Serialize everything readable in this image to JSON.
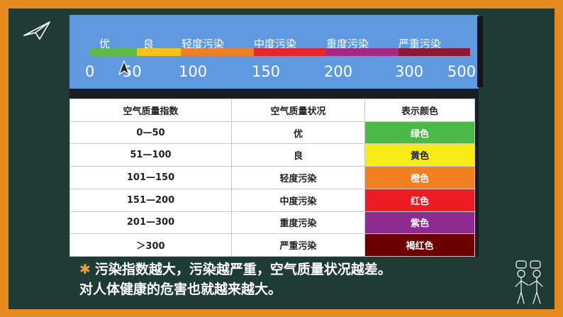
{
  "scale": {
    "levels": [
      "优",
      "良",
      "轻度污染",
      "中度污染",
      "重度污染",
      "严重污染"
    ],
    "colors": [
      "#5cb848",
      "#f6c21a",
      "#ec7f2c",
      "#e2272e",
      "#a22a82",
      "#8c1a33"
    ],
    "numbers": [
      "0",
      "50",
      "100",
      "150",
      "200",
      "300",
      "500"
    ]
  },
  "table": {
    "headers": [
      "空气质量指数",
      "空气质量状况",
      "表示颜色"
    ],
    "rows": [
      {
        "index": "0—50",
        "status": "优",
        "color_name": "绿色",
        "color": "#4cb848"
      },
      {
        "index": "51—100",
        "status": "良",
        "color_name": "黄色",
        "color": "#f7ec14"
      },
      {
        "index": "101—150",
        "status": "轻度污染",
        "color_name": "橙色",
        "color": "#f18020"
      },
      {
        "index": "151—200",
        "status": "中度污染",
        "color_name": "红色",
        "color": "#ec1c24"
      },
      {
        "index": "201—300",
        "status": "重度污染",
        "color_name": "紫色",
        "color": "#8e2b8f"
      },
      {
        "index": "＞300",
        "status": "严重污染",
        "color_name": "褐红色",
        "color": "#6b0000"
      }
    ]
  },
  "note": {
    "line1": "污染指数越大，污染越严重，空气质量状况越差。",
    "line2": "对人体健康的危害也就越来越大。"
  },
  "icons": [
    "paper-plane-icon",
    "discussion-people-icon",
    "pointer-arrow-icon"
  ]
}
